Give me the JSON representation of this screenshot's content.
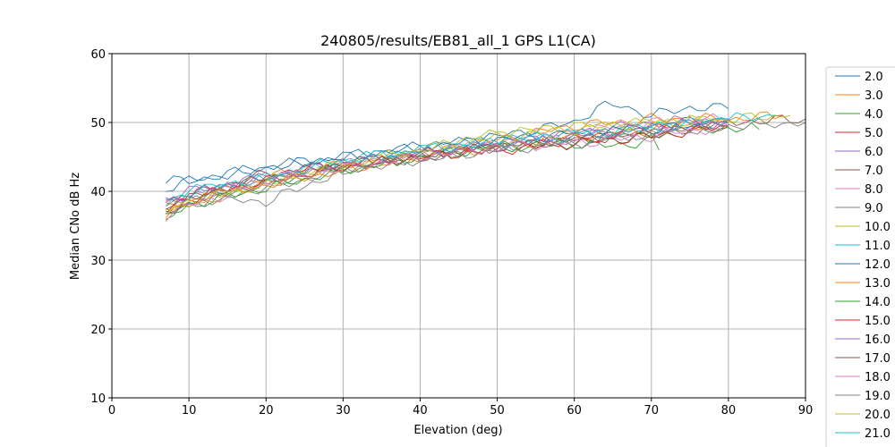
{
  "chart_data": {
    "type": "line",
    "title": "240805/results/EB81_all_1 GPS L1(CA)",
    "xlabel": "Elevation (deg)",
    "ylabel": "Median CNo dB Hz",
    "xlim": [
      0,
      90
    ],
    "ylim": [
      10,
      60
    ],
    "xticks": [
      0,
      10,
      20,
      30,
      40,
      50,
      60,
      70,
      80,
      90
    ],
    "yticks": [
      10,
      20,
      30,
      40,
      50,
      60
    ],
    "grid": true,
    "legend_position": "right",
    "series": [
      {
        "name": "2.0",
        "color": "#1f77b4",
        "x": [
          7,
          10,
          20,
          30,
          40,
          50,
          60,
          63,
          66,
          70,
          75,
          80
        ],
        "values": [
          41.5,
          41.5,
          43.5,
          45.0,
          46.5,
          48.0,
          50.0,
          52.2,
          52.5,
          51.0,
          52.2,
          52.0
        ]
      },
      {
        "name": "3.0",
        "color": "#ff7f0e",
        "x": [
          7,
          10,
          20,
          30,
          40,
          50,
          60,
          70,
          80,
          87
        ],
        "values": [
          37.5,
          38.5,
          42.0,
          44.0,
          45.5,
          47.5,
          49.5,
          50.5,
          50.5,
          51.0
        ]
      },
      {
        "name": "4.0",
        "color": "#2ca02c",
        "x": [
          7,
          10,
          20,
          30,
          40,
          50,
          60,
          70,
          80,
          84
        ],
        "values": [
          36.0,
          38.5,
          41.0,
          43.5,
          45.0,
          46.5,
          47.0,
          48.0,
          49.2,
          49.0
        ]
      },
      {
        "name": "5.0",
        "color": "#d62728",
        "x": [
          7,
          10,
          20,
          30,
          40,
          50,
          60,
          70,
          78
        ],
        "values": [
          38.5,
          39.5,
          42.5,
          44.0,
          45.5,
          46.5,
          47.5,
          49.5,
          50.5
        ]
      },
      {
        "name": "6.0",
        "color": "#9467bd",
        "x": [
          7,
          10,
          20,
          30,
          40,
          50,
          60,
          70,
          80
        ],
        "values": [
          39.0,
          40.0,
          42.0,
          44.0,
          45.5,
          47.0,
          48.5,
          50.0,
          50.5
        ]
      },
      {
        "name": "7.0",
        "color": "#8c564b",
        "x": [
          7,
          10,
          20,
          30,
          40,
          50,
          60,
          70,
          80,
          90
        ],
        "values": [
          37.5,
          39.0,
          41.5,
          43.5,
          45.0,
          46.5,
          47.5,
          48.5,
          50.0,
          50.5
        ]
      },
      {
        "name": "8.0",
        "color": "#e377c2",
        "x": [
          7,
          10,
          20,
          30,
          40,
          50,
          60,
          70,
          80
        ],
        "values": [
          38.0,
          39.5,
          41.5,
          44.0,
          45.5,
          47.0,
          48.5,
          50.0,
          50.5
        ]
      },
      {
        "name": "9.0",
        "color": "#7f7f7f",
        "x": [
          7,
          10,
          20,
          30,
          40,
          50,
          60,
          70,
          80,
          90
        ],
        "values": [
          37.0,
          38.0,
          40.5,
          43.0,
          45.0,
          46.5,
          47.5,
          48.5,
          49.5,
          50.0
        ]
      },
      {
        "name": "10.0",
        "color": "#bcbd22",
        "x": [
          7,
          10,
          20,
          30,
          40,
          50,
          60,
          70,
          80,
          88
        ],
        "values": [
          37.0,
          38.5,
          41.0,
          43.5,
          46.0,
          48.5,
          49.5,
          50.0,
          50.5,
          51.0
        ]
      },
      {
        "name": "11.0",
        "color": "#17becf",
        "x": [
          7,
          10,
          20,
          30,
          40,
          50,
          60,
          70,
          80,
          86
        ],
        "values": [
          38.5,
          40.0,
          42.0,
          44.5,
          46.0,
          47.5,
          48.5,
          49.0,
          50.5,
          51.0
        ]
      },
      {
        "name": "12.0",
        "color": "#1f77b4",
        "x": [
          7,
          10,
          20,
          30,
          40,
          50,
          60,
          70,
          80
        ],
        "values": [
          40.5,
          41.5,
          43.5,
          45.0,
          46.5,
          47.5,
          48.5,
          49.0,
          50.0
        ]
      },
      {
        "name": "13.0",
        "color": "#ff7f0e",
        "x": [
          7,
          10,
          20,
          30,
          40,
          50,
          60,
          70,
          80
        ],
        "values": [
          36.5,
          38.0,
          41.0,
          43.0,
          45.0,
          46.5,
          48.0,
          49.0,
          50.0
        ]
      },
      {
        "name": "14.0",
        "color": "#2ca02c",
        "x": [
          7,
          10,
          20,
          30,
          40,
          50,
          60,
          65,
          70,
          71
        ],
        "values": [
          36.0,
          38.0,
          40.5,
          43.0,
          45.0,
          46.5,
          47.0,
          46.5,
          47.5,
          46.0
        ]
      },
      {
        "name": "15.0",
        "color": "#d62728",
        "x": [
          7,
          10,
          20,
          30,
          40,
          50,
          60,
          70,
          80
        ],
        "values": [
          37.5,
          39.0,
          41.5,
          43.5,
          45.0,
          46.0,
          47.0,
          48.0,
          49.5
        ]
      },
      {
        "name": "16.0",
        "color": "#9467bd",
        "x": [
          7,
          10,
          20,
          30,
          40,
          50,
          60,
          70,
          80
        ],
        "values": [
          38.5,
          39.5,
          42.0,
          44.0,
          45.5,
          46.5,
          48.0,
          49.5,
          50.0
        ]
      },
      {
        "name": "17.0",
        "color": "#8c564b",
        "x": [
          7,
          10,
          20,
          30,
          40,
          50,
          60,
          70,
          80
        ],
        "values": [
          37.0,
          39.0,
          42.0,
          44.0,
          45.0,
          46.5,
          47.5,
          48.5,
          49.5
        ]
      },
      {
        "name": "18.0",
        "color": "#e377c2",
        "x": [
          7,
          10,
          20,
          30,
          40,
          50,
          60,
          70,
          80
        ],
        "values": [
          36.5,
          38.0,
          41.0,
          43.5,
          45.0,
          46.5,
          47.0,
          48.0,
          49.5
        ]
      },
      {
        "name": "19.0",
        "color": "#7f7f7f",
        "x": [
          7,
          10,
          20,
          30,
          40,
          50,
          60,
          70,
          80
        ],
        "values": [
          37.5,
          39.0,
          38.5,
          43.0,
          44.5,
          46.0,
          47.0,
          48.5,
          49.5
        ]
      },
      {
        "name": "20.0",
        "color": "#bcbd22",
        "x": [
          7,
          10,
          20,
          30,
          40,
          50,
          60,
          70,
          80
        ],
        "values": [
          37.0,
          38.5,
          41.5,
          44.0,
          46.0,
          48.0,
          49.0,
          50.0,
          50.5
        ]
      },
      {
        "name": "21.0",
        "color": "#17becf",
        "x": [
          7,
          10,
          20,
          30,
          40,
          50,
          60,
          70,
          80
        ],
        "values": [
          38.0,
          40.0,
          42.0,
          44.5,
          46.0,
          47.0,
          48.0,
          49.5,
          50.5
        ]
      }
    ]
  }
}
